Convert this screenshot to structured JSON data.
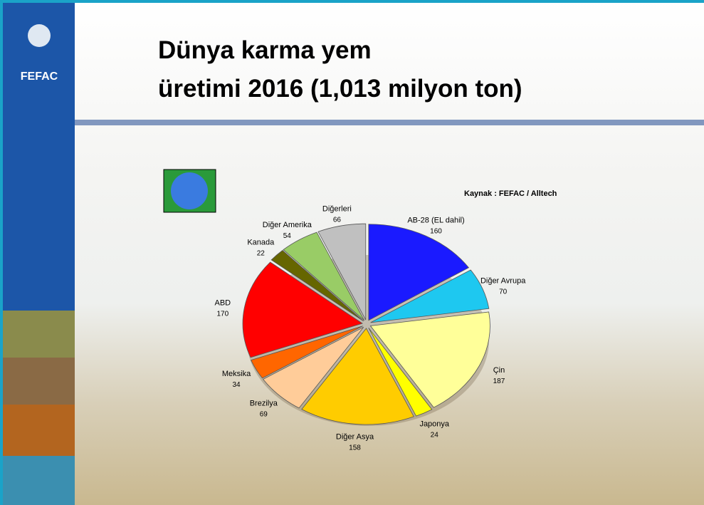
{
  "logo": "FEFAC",
  "chart_data": {
    "type": "pie",
    "title": [
      "Dünya karma yem",
      "üretimi 2016 (1,013 milyon ton)"
    ],
    "source": "Kaynak  : FEFAC / Alltech",
    "categories": [
      "AB-28 (EL dahil)",
      "Diğer Avrupa",
      "Çin",
      "Japonya",
      "Diğer Asya",
      "Brezilya",
      "Meksika",
      "ABD",
      "Kanada",
      "Diğer Amerika",
      "Diğerleri"
    ],
    "values": [
      160,
      70,
      187,
      24,
      158,
      69,
      34,
      170,
      22,
      54,
      66
    ],
    "colors": [
      "#1a1aff",
      "#1ec8f0",
      "#ffff99",
      "#ffff00",
      "#ffcc00",
      "#ffcc99",
      "#ff6600",
      "#ff0000",
      "#666600",
      "#99cc66",
      "#c0c0c0"
    ]
  }
}
